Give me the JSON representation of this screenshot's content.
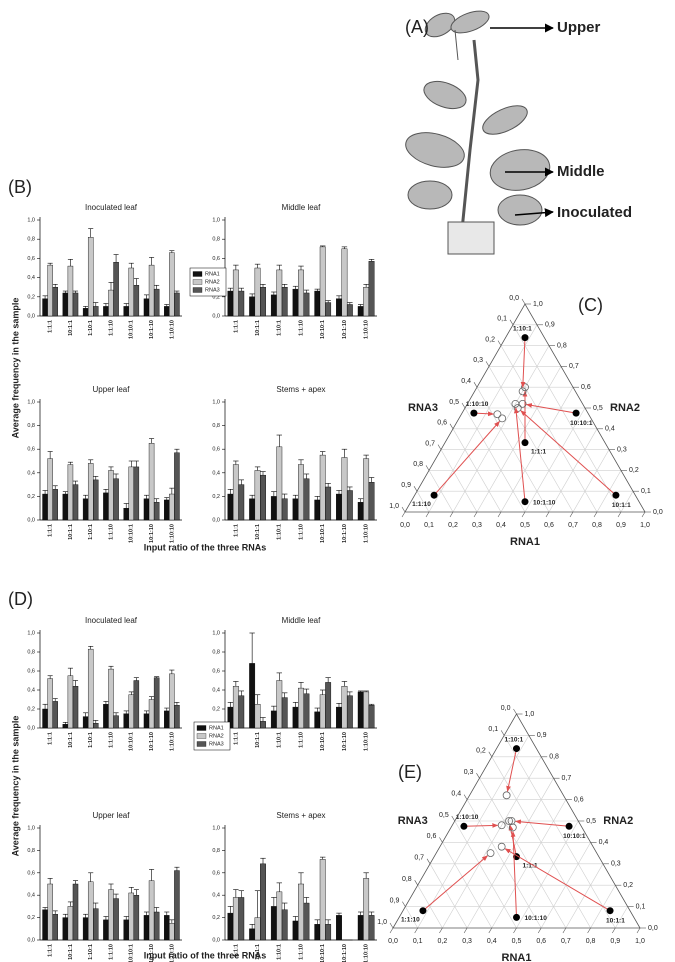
{
  "panel_labels": [
    "(A)",
    "(B)",
    "(C)",
    "(D)",
    "(E)"
  ],
  "plant_labels": [
    "Upper",
    "Middle",
    "Inoculated"
  ],
  "figure_axes": [
    {
      "ylabel": "Average frequency in the sample",
      "xlabel": "Input ratio of the three RNAs"
    },
    {
      "ylabel": "Average frequency in the sample",
      "xlabel": "Input ratio of the three RNAs"
    }
  ],
  "chart_data": [
    {
      "type": "bar",
      "title": "Inoculated leaf",
      "categories": [
        "1:1:1",
        "10:1:1",
        "1:10:1",
        "1:1:10",
        "10:10:1",
        "10:1:10",
        "1:10:10"
      ],
      "series": [
        {
          "name": "RNA1",
          "color": "#111111",
          "values": [
            0.18,
            0.24,
            0.08,
            0.1,
            0.1,
            0.18,
            0.1
          ],
          "errors": [
            0.03,
            0.02,
            0.02,
            0.03,
            0.03,
            0.04,
            0.02
          ]
        },
        {
          "name": "RNA2",
          "color": "#c8c8c8",
          "values": [
            0.53,
            0.52,
            0.82,
            0.27,
            0.5,
            0.53,
            0.66
          ],
          "errors": [
            0.02,
            0.07,
            0.09,
            0.08,
            0.05,
            0.08,
            0.02
          ]
        },
        {
          "name": "RNA3",
          "color": "#555555",
          "values": [
            0.3,
            0.24,
            0.1,
            0.56,
            0.32,
            0.28,
            0.24
          ],
          "errors": [
            0.03,
            0.02,
            0.04,
            0.08,
            0.07,
            0.04,
            0.02
          ]
        }
      ],
      "ylim": [
        0,
        1
      ],
      "yticks": [
        {
          "value": 0,
          "label": "0,0"
        },
        {
          "value": 0.2,
          "label": "0,2"
        },
        {
          "value": 0.4,
          "label": "0,4"
        },
        {
          "value": 0.6,
          "label": "0,6"
        },
        {
          "value": 0.8,
          "label": "0,8"
        },
        {
          "value": 1,
          "label": "1,0"
        }
      ]
    },
    {
      "type": "bar",
      "title": "Middle leaf",
      "categories": [
        "1:1:1",
        "10:1:1",
        "1:10:1",
        "1:1:10",
        "10:10:1",
        "10:1:10",
        "1:10:10"
      ],
      "legend": true,
      "series": [
        {
          "name": "RNA1",
          "color": "#111111",
          "values": [
            0.26,
            0.2,
            0.22,
            0.28,
            0.26,
            0.18,
            0.1
          ],
          "errors": [
            0.03,
            0.03,
            0.03,
            0.03,
            0.02,
            0.03,
            0.02
          ]
        },
        {
          "name": "RNA2",
          "color": "#c8c8c8",
          "values": [
            0.48,
            0.5,
            0.48,
            0.48,
            0.72,
            0.7,
            0.3
          ],
          "errors": [
            0.05,
            0.04,
            0.05,
            0.04,
            0.01,
            0.02,
            0.03
          ]
        },
        {
          "name": "RNA3",
          "color": "#555555",
          "values": [
            0.26,
            0.3,
            0.3,
            0.24,
            0.14,
            0.12,
            0.57
          ],
          "errors": [
            0.03,
            0.03,
            0.03,
            0.03,
            0.02,
            0.02,
            0.02
          ]
        }
      ],
      "ylim": [
        0,
        1
      ],
      "yticks": [
        {
          "value": 0,
          "label": "0,0"
        },
        {
          "value": 0.2,
          "label": "0,2"
        },
        {
          "value": 0.4,
          "label": "0,4"
        },
        {
          "value": 0.6,
          "label": "0,6"
        },
        {
          "value": 0.8,
          "label": "0,8"
        },
        {
          "value": 1,
          "label": "1,0"
        }
      ]
    },
    {
      "type": "bar",
      "title": "Upper leaf",
      "categories": [
        "1:1:1",
        "10:1:1",
        "1:10:1",
        "1:1:10",
        "10:10:1",
        "10:1:10",
        "1:10:10"
      ],
      "series": [
        {
          "name": "RNA1",
          "color": "#111111",
          "values": [
            0.22,
            0.22,
            0.18,
            0.23,
            0.1,
            0.18,
            0.17
          ],
          "errors": [
            0.03,
            0.02,
            0.03,
            0.03,
            0.04,
            0.03,
            0.02
          ]
        },
        {
          "name": "RNA2",
          "color": "#c8c8c8",
          "values": [
            0.52,
            0.47,
            0.48,
            0.42,
            0.45,
            0.65,
            0.22
          ],
          "errors": [
            0.06,
            0.02,
            0.03,
            0.03,
            0.05,
            0.04,
            0.05
          ]
        },
        {
          "name": "RNA3",
          "color": "#555555",
          "values": [
            0.26,
            0.3,
            0.34,
            0.35,
            0.45,
            0.15,
            0.57
          ],
          "errors": [
            0.03,
            0.03,
            0.03,
            0.04,
            0.05,
            0.03,
            0.03
          ]
        }
      ],
      "ylim": [
        0,
        1
      ],
      "yticks": [
        {
          "value": 0,
          "label": "0,0"
        },
        {
          "value": 0.2,
          "label": "0,2"
        },
        {
          "value": 0.4,
          "label": "0,4"
        },
        {
          "value": 0.6,
          "label": "0,6"
        },
        {
          "value": 0.8,
          "label": "0,8"
        },
        {
          "value": 1,
          "label": "1,0"
        }
      ]
    },
    {
      "type": "bar",
      "title": "Stems + apex",
      "categories": [
        "1:1:1",
        "10:1:1",
        "1:10:1",
        "1:1:10",
        "10:10:1",
        "10:1:10",
        "1:10:10"
      ],
      "series": [
        {
          "name": "RNA1",
          "color": "#111111",
          "values": [
            0.22,
            0.18,
            0.2,
            0.18,
            0.17,
            0.22,
            0.15
          ],
          "errors": [
            0.04,
            0.03,
            0.04,
            0.03,
            0.03,
            0.03,
            0.03
          ]
        },
        {
          "name": "RNA2",
          "color": "#c8c8c8",
          "values": [
            0.47,
            0.42,
            0.62,
            0.47,
            0.55,
            0.53,
            0.52
          ],
          "errors": [
            0.03,
            0.03,
            0.1,
            0.04,
            0.03,
            0.07,
            0.03
          ]
        },
        {
          "name": "RNA3",
          "color": "#555555",
          "values": [
            0.3,
            0.38,
            0.18,
            0.35,
            0.28,
            0.25,
            0.32
          ],
          "errors": [
            0.04,
            0.03,
            0.04,
            0.04,
            0.03,
            0.03,
            0.04
          ]
        }
      ],
      "ylim": [
        0,
        1
      ],
      "yticks": [
        {
          "value": 0,
          "label": "0,0"
        },
        {
          "value": 0.2,
          "label": "0,2"
        },
        {
          "value": 0.4,
          "label": "0,4"
        },
        {
          "value": 0.6,
          "label": "0,6"
        },
        {
          "value": 0.8,
          "label": "0,8"
        },
        {
          "value": 1,
          "label": "1,0"
        }
      ]
    },
    {
      "type": "bar",
      "title": "Inoculated leaf",
      "categories": [
        "1:1:1",
        "10:1:1",
        "1:10:1",
        "1:1:10",
        "10:10:1",
        "10:1:10",
        "1:10:10"
      ],
      "series": [
        {
          "name": "RNA1",
          "color": "#111111",
          "values": [
            0.2,
            0.04,
            0.12,
            0.25,
            0.15,
            0.15,
            0.18
          ],
          "errors": [
            0.05,
            0.02,
            0.04,
            0.03,
            0.03,
            0.03,
            0.03
          ]
        },
        {
          "name": "RNA2",
          "color": "#c8c8c8",
          "values": [
            0.52,
            0.55,
            0.83,
            0.62,
            0.35,
            0.3,
            0.57
          ],
          "errors": [
            0.03,
            0.08,
            0.03,
            0.03,
            0.03,
            0.03,
            0.04
          ]
        },
        {
          "name": "RNA3",
          "color": "#555555",
          "values": [
            0.28,
            0.44,
            0.05,
            0.13,
            0.5,
            0.53,
            0.24
          ],
          "errors": [
            0.03,
            0.06,
            0.03,
            0.03,
            0.03,
            0.01,
            0.03
          ]
        }
      ],
      "ylim": [
        0,
        1
      ],
      "yticks": [
        {
          "value": 0,
          "label": "0,0"
        },
        {
          "value": 0.2,
          "label": "0,2"
        },
        {
          "value": 0.4,
          "label": "0,4"
        },
        {
          "value": 0.6,
          "label": "0,6"
        },
        {
          "value": 0.8,
          "label": "0,8"
        },
        {
          "value": 1,
          "label": "1,0"
        }
      ]
    },
    {
      "type": "bar",
      "title": "Middle leaf",
      "categories": [
        "1:1:1",
        "10:1:1",
        "1:10:1",
        "1:1:10",
        "10:10:1",
        "10:1:10",
        "1:10:10"
      ],
      "legend": true,
      "series": [
        {
          "name": "RNA1",
          "color": "#111111",
          "values": [
            0.22,
            0.68,
            0.18,
            0.22,
            0.17,
            0.22,
            0.38
          ],
          "errors": [
            0.05,
            0.32,
            0.05,
            0.05,
            0.04,
            0.04,
            0.01
          ]
        },
        {
          "name": "RNA2",
          "color": "#c8c8c8",
          "values": [
            0.44,
            0.25,
            0.5,
            0.42,
            0.35,
            0.44,
            0.38
          ],
          "errors": [
            0.05,
            0.1,
            0.08,
            0.06,
            0.05,
            0.05,
            0.01
          ]
        },
        {
          "name": "RNA3",
          "color": "#555555",
          "values": [
            0.34,
            0.07,
            0.32,
            0.36,
            0.48,
            0.34,
            0.24
          ],
          "errors": [
            0.05,
            0.04,
            0.05,
            0.05,
            0.05,
            0.04,
            0.01
          ]
        }
      ],
      "ylim": [
        0,
        1
      ],
      "yticks": [
        {
          "value": 0,
          "label": "0,0"
        },
        {
          "value": 0.2,
          "label": "0,2"
        },
        {
          "value": 0.4,
          "label": "0,4"
        },
        {
          "value": 0.6,
          "label": "0,6"
        },
        {
          "value": 0.8,
          "label": "0,8"
        },
        {
          "value": 1,
          "label": "1,0"
        }
      ]
    },
    {
      "type": "bar",
      "title": "Upper leaf",
      "categories": [
        "1:1:1",
        "10:1:1",
        "1:10:1",
        "1:1:10",
        "10:10:1",
        "10:1:10",
        "1:10:10"
      ],
      "series": [
        {
          "name": "RNA1",
          "color": "#111111",
          "values": [
            0.27,
            0.2,
            0.2,
            0.18,
            0.18,
            0.22,
            0.22
          ],
          "errors": [
            0.02,
            0.03,
            0.03,
            0.03,
            0.03,
            0.03,
            0.03
          ]
        },
        {
          "name": "RNA2",
          "color": "#c8c8c8",
          "values": [
            0.5,
            0.3,
            0.52,
            0.45,
            0.42,
            0.53,
            0.15
          ],
          "errors": [
            0.05,
            0.04,
            0.08,
            0.05,
            0.05,
            0.1,
            0.03
          ]
        },
        {
          "name": "RNA3",
          "color": "#555555",
          "values": [
            0.23,
            0.5,
            0.28,
            0.37,
            0.4,
            0.25,
            0.62
          ],
          "errors": [
            0.03,
            0.03,
            0.05,
            0.04,
            0.05,
            0.04,
            0.03
          ]
        }
      ],
      "ylim": [
        0,
        1
      ],
      "yticks": [
        {
          "value": 0,
          "label": "0,0"
        },
        {
          "value": 0.2,
          "label": "0,2"
        },
        {
          "value": 0.4,
          "label": "0,4"
        },
        {
          "value": 0.6,
          "label": "0,6"
        },
        {
          "value": 0.8,
          "label": "0,8"
        },
        {
          "value": 1,
          "label": "1,0"
        }
      ]
    },
    {
      "type": "bar",
      "title": "Stems + apex",
      "categories": [
        "1:1:1",
        "10:1:1",
        "1:10:1",
        "1:1:10",
        "10:10:1",
        "10:1:10",
        "1:10:10"
      ],
      "series": [
        {
          "name": "RNA1",
          "color": "#111111",
          "values": [
            0.24,
            0.1,
            0.3,
            0.17,
            0.14,
            0.22,
            0.22
          ],
          "errors": [
            0.06,
            0.04,
            0.08,
            0.04,
            0.04,
            0.02,
            0.03
          ]
        },
        {
          "name": "RNA2",
          "color": "#c8c8c8",
          "values": [
            0.38,
            0.2,
            0.43,
            0.5,
            0.72,
            0,
            0.55
          ],
          "errors": [
            0.07,
            0.24,
            0.08,
            0.1,
            0.02,
            0,
            0.05
          ]
        },
        {
          "name": "RNA3",
          "color": "#555555",
          "values": [
            0.38,
            0.68,
            0.27,
            0.33,
            0.14,
            0,
            0.22
          ],
          "errors": [
            0.06,
            0.05,
            0.06,
            0.05,
            0.04,
            0,
            0.03
          ]
        }
      ],
      "ylim": [
        0,
        1
      ],
      "yticks": [
        {
          "value": 0,
          "label": "0,0"
        },
        {
          "value": 0.2,
          "label": "0,2"
        },
        {
          "value": 0.4,
          "label": "0,4"
        },
        {
          "value": 0.6,
          "label": "0,6"
        },
        {
          "value": 0.8,
          "label": "0,8"
        },
        {
          "value": 1,
          "label": "1,0"
        }
      ]
    },
    {
      "type": "ternary",
      "axes": [
        "RNA1",
        "RNA2",
        "RNA3"
      ],
      "grid": true,
      "categories": [
        "1:1:1",
        "10:1:1",
        "1:10:1",
        "1:1:10",
        "10:10:1",
        "10:1:10",
        "1:10:10"
      ],
      "inputs": [
        [
          0.33,
          0.33,
          0.33
        ],
        [
          0.83,
          0.08,
          0.08
        ],
        [
          0.08,
          0.83,
          0.08
        ],
        [
          0.08,
          0.08,
          0.83
        ],
        [
          0.48,
          0.48,
          0.05
        ],
        [
          0.48,
          0.05,
          0.48
        ],
        [
          0.05,
          0.48,
          0.48
        ]
      ],
      "outputs": [
        [
          0.2,
          0.6,
          0.2
        ],
        [
          0.22,
          0.5,
          0.28
        ],
        [
          0.2,
          0.58,
          0.22
        ],
        [
          0.18,
          0.45,
          0.37
        ],
        [
          0.23,
          0.52,
          0.25
        ],
        [
          0.2,
          0.52,
          0.28
        ],
        [
          0.15,
          0.47,
          0.38
        ]
      ],
      "ticks": [
        {
          "value": 0,
          "label": "0,0"
        },
        {
          "value": 0.1,
          "label": "0,1"
        },
        {
          "value": 0.2,
          "label": "0,2"
        },
        {
          "value": 0.3,
          "label": "0,3"
        },
        {
          "value": 0.4,
          "label": "0,4"
        },
        {
          "value": 0.5,
          "label": "0,5"
        },
        {
          "value": 0.6,
          "label": "0,6"
        },
        {
          "value": 0.7,
          "label": "0,7"
        },
        {
          "value": 0.8,
          "label": "0,8"
        },
        {
          "value": 0.9,
          "label": "0,9"
        },
        {
          "value": 1,
          "label": "1,0"
        }
      ]
    },
    {
      "type": "ternary",
      "axes": [
        "RNA1",
        "RNA2",
        "RNA3"
      ],
      "grid": true,
      "categories": [
        "1:1:1",
        "10:1:1",
        "1:10:1",
        "1:1:10",
        "10:10:1",
        "10:1:10",
        "1:10:10"
      ],
      "inputs": [
        [
          0.33,
          0.33,
          0.33
        ],
        [
          0.83,
          0.08,
          0.08
        ],
        [
          0.08,
          0.83,
          0.08
        ],
        [
          0.08,
          0.08,
          0.83
        ],
        [
          0.48,
          0.48,
          0.05
        ],
        [
          0.48,
          0.05,
          0.48
        ],
        [
          0.05,
          0.48,
          0.48
        ]
      ],
      "outputs": [
        [
          0.22,
          0.5,
          0.28
        ],
        [
          0.25,
          0.38,
          0.37
        ],
        [
          0.15,
          0.62,
          0.23
        ],
        [
          0.22,
          0.35,
          0.43
        ],
        [
          0.23,
          0.5,
          0.27
        ],
        [
          0.25,
          0.47,
          0.28
        ],
        [
          0.2,
          0.48,
          0.32
        ]
      ],
      "ticks": [
        {
          "value": 0,
          "label": "0,0"
        },
        {
          "value": 0.1,
          "label": "0,1"
        },
        {
          "value": 0.2,
          "label": "0,2"
        },
        {
          "value": 0.3,
          "label": "0,3"
        },
        {
          "value": 0.4,
          "label": "0,4"
        },
        {
          "value": 0.5,
          "label": "0,5"
        },
        {
          "value": 0.6,
          "label": "0,6"
        },
        {
          "value": 0.7,
          "label": "0,7"
        },
        {
          "value": 0.8,
          "label": "0,8"
        },
        {
          "value": 0.9,
          "label": "0,9"
        },
        {
          "value": 1,
          "label": "1,0"
        }
      ]
    }
  ]
}
